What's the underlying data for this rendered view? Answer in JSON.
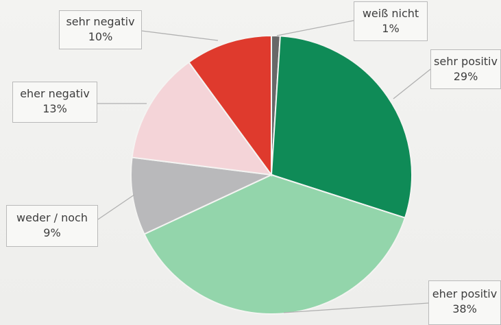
{
  "chart_data": {
    "type": "pie",
    "title": "",
    "slices": [
      {
        "label": "weiß nicht",
        "value": 1,
        "display": "1%",
        "color": "#686868"
      },
      {
        "label": "sehr positiv",
        "value": 29,
        "display": "29%",
        "color": "#0f8b57"
      },
      {
        "label": "eher positiv",
        "value": 38,
        "display": "38%",
        "color": "#93d5ab"
      },
      {
        "label": "weder / noch",
        "value": 9,
        "display": "9%",
        "color": "#b9b9bb"
      },
      {
        "label": "eher negativ",
        "value": 13,
        "display": "13%",
        "color": "#f4d4d8"
      },
      {
        "label": "sehr negativ",
        "value": 10,
        "display": "10%",
        "color": "#df3a2d"
      }
    ],
    "legend": "callout labels",
    "grid": false
  }
}
